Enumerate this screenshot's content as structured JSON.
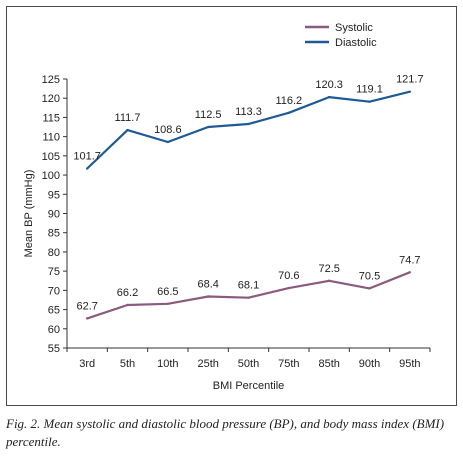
{
  "caption": "Fig. 2. Mean systolic and diastolic blood pressure (BP), and body mass index (BMI) percentile.",
  "chart_data": {
    "type": "line",
    "categories": [
      "3rd",
      "5th",
      "10th",
      "25th",
      "50th",
      "75th",
      "85th",
      "90th",
      "95th"
    ],
    "series": [
      {
        "name": "Systolic",
        "color": "#8c5a7e",
        "values": [
          62.7,
          66.2,
          66.5,
          68.4,
          68.1,
          70.6,
          72.5,
          70.5,
          74.7
        ]
      },
      {
        "name": "Diastolic",
        "color": "#1f5a96",
        "values": [
          101.7,
          111.7,
          108.6,
          112.5,
          113.3,
          116.2,
          120.3,
          119.1,
          121.7
        ]
      }
    ],
    "xlabel": "BMI Percentile",
    "ylabel": "Mean BP (mmHg)",
    "ylim": [
      55,
      125
    ],
    "yticks": [
      "55",
      "60",
      "65",
      "70",
      "75",
      "80",
      "85",
      "90",
      "95",
      "100",
      "105",
      "110",
      "115",
      "120",
      "125"
    ],
    "grid": false,
    "legend": "top-right"
  }
}
